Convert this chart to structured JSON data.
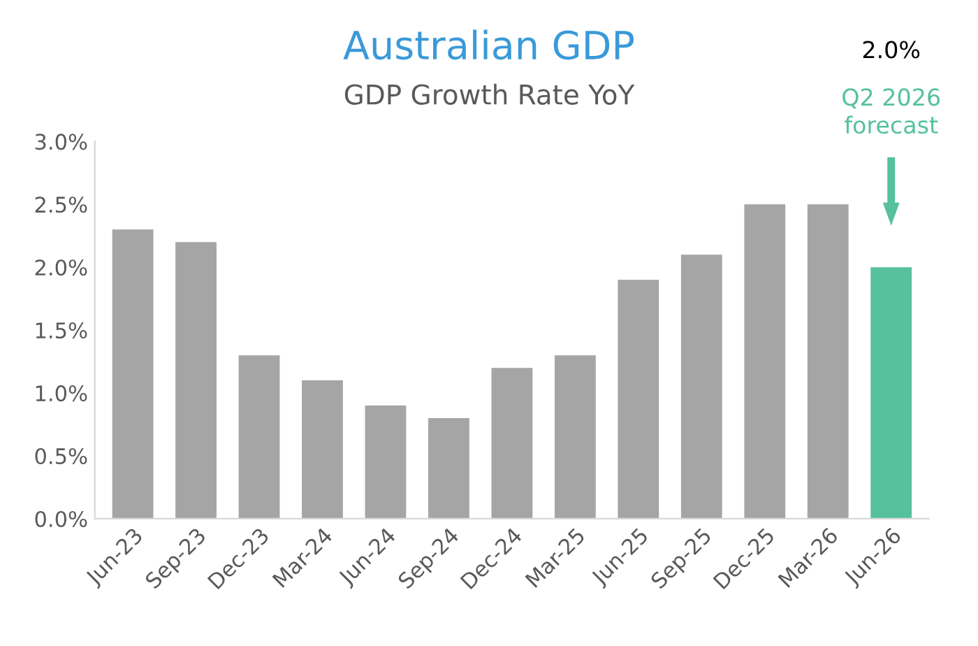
{
  "chart_data": {
    "type": "bar",
    "title": "Australian GDP",
    "subtitle": "GDP Growth Rate YoY",
    "categories": [
      "Jun-23",
      "Sep-23",
      "Dec-23",
      "Mar-24",
      "Jun-24",
      "Sep-24",
      "Dec-24",
      "Mar-25",
      "Jun-25",
      "Sep-25",
      "Dec-25",
      "Mar-26",
      "Jun-26"
    ],
    "values": [
      2.3,
      2.2,
      1.3,
      1.1,
      0.9,
      0.8,
      1.2,
      1.3,
      1.9,
      2.1,
      2.5,
      2.5,
      2.0
    ],
    "colors": [
      "#a5a5a5",
      "#a5a5a5",
      "#a5a5a5",
      "#a5a5a5",
      "#a5a5a5",
      "#a5a5a5",
      "#a5a5a5",
      "#a5a5a5",
      "#a5a5a5",
      "#a5a5a5",
      "#a5a5a5",
      "#a5a5a5",
      "#56c19c"
    ],
    "ylim": [
      0,
      3.0
    ],
    "yticks": [
      {
        "value": 0,
        "label": "0.0%"
      },
      {
        "value": 0.5,
        "label": "0.5%"
      },
      {
        "value": 1.0,
        "label": "1.0%"
      },
      {
        "value": 1.5,
        "label": "1.5%"
      },
      {
        "value": 2.0,
        "label": "2.0%"
      },
      {
        "value": 2.5,
        "label": "2.5%"
      },
      {
        "value": 3.0,
        "label": "3.0%"
      }
    ],
    "grid": false,
    "legend": false,
    "annotations": [
      "2.0%",
      "Q2 2026\nforecast"
    ]
  }
}
